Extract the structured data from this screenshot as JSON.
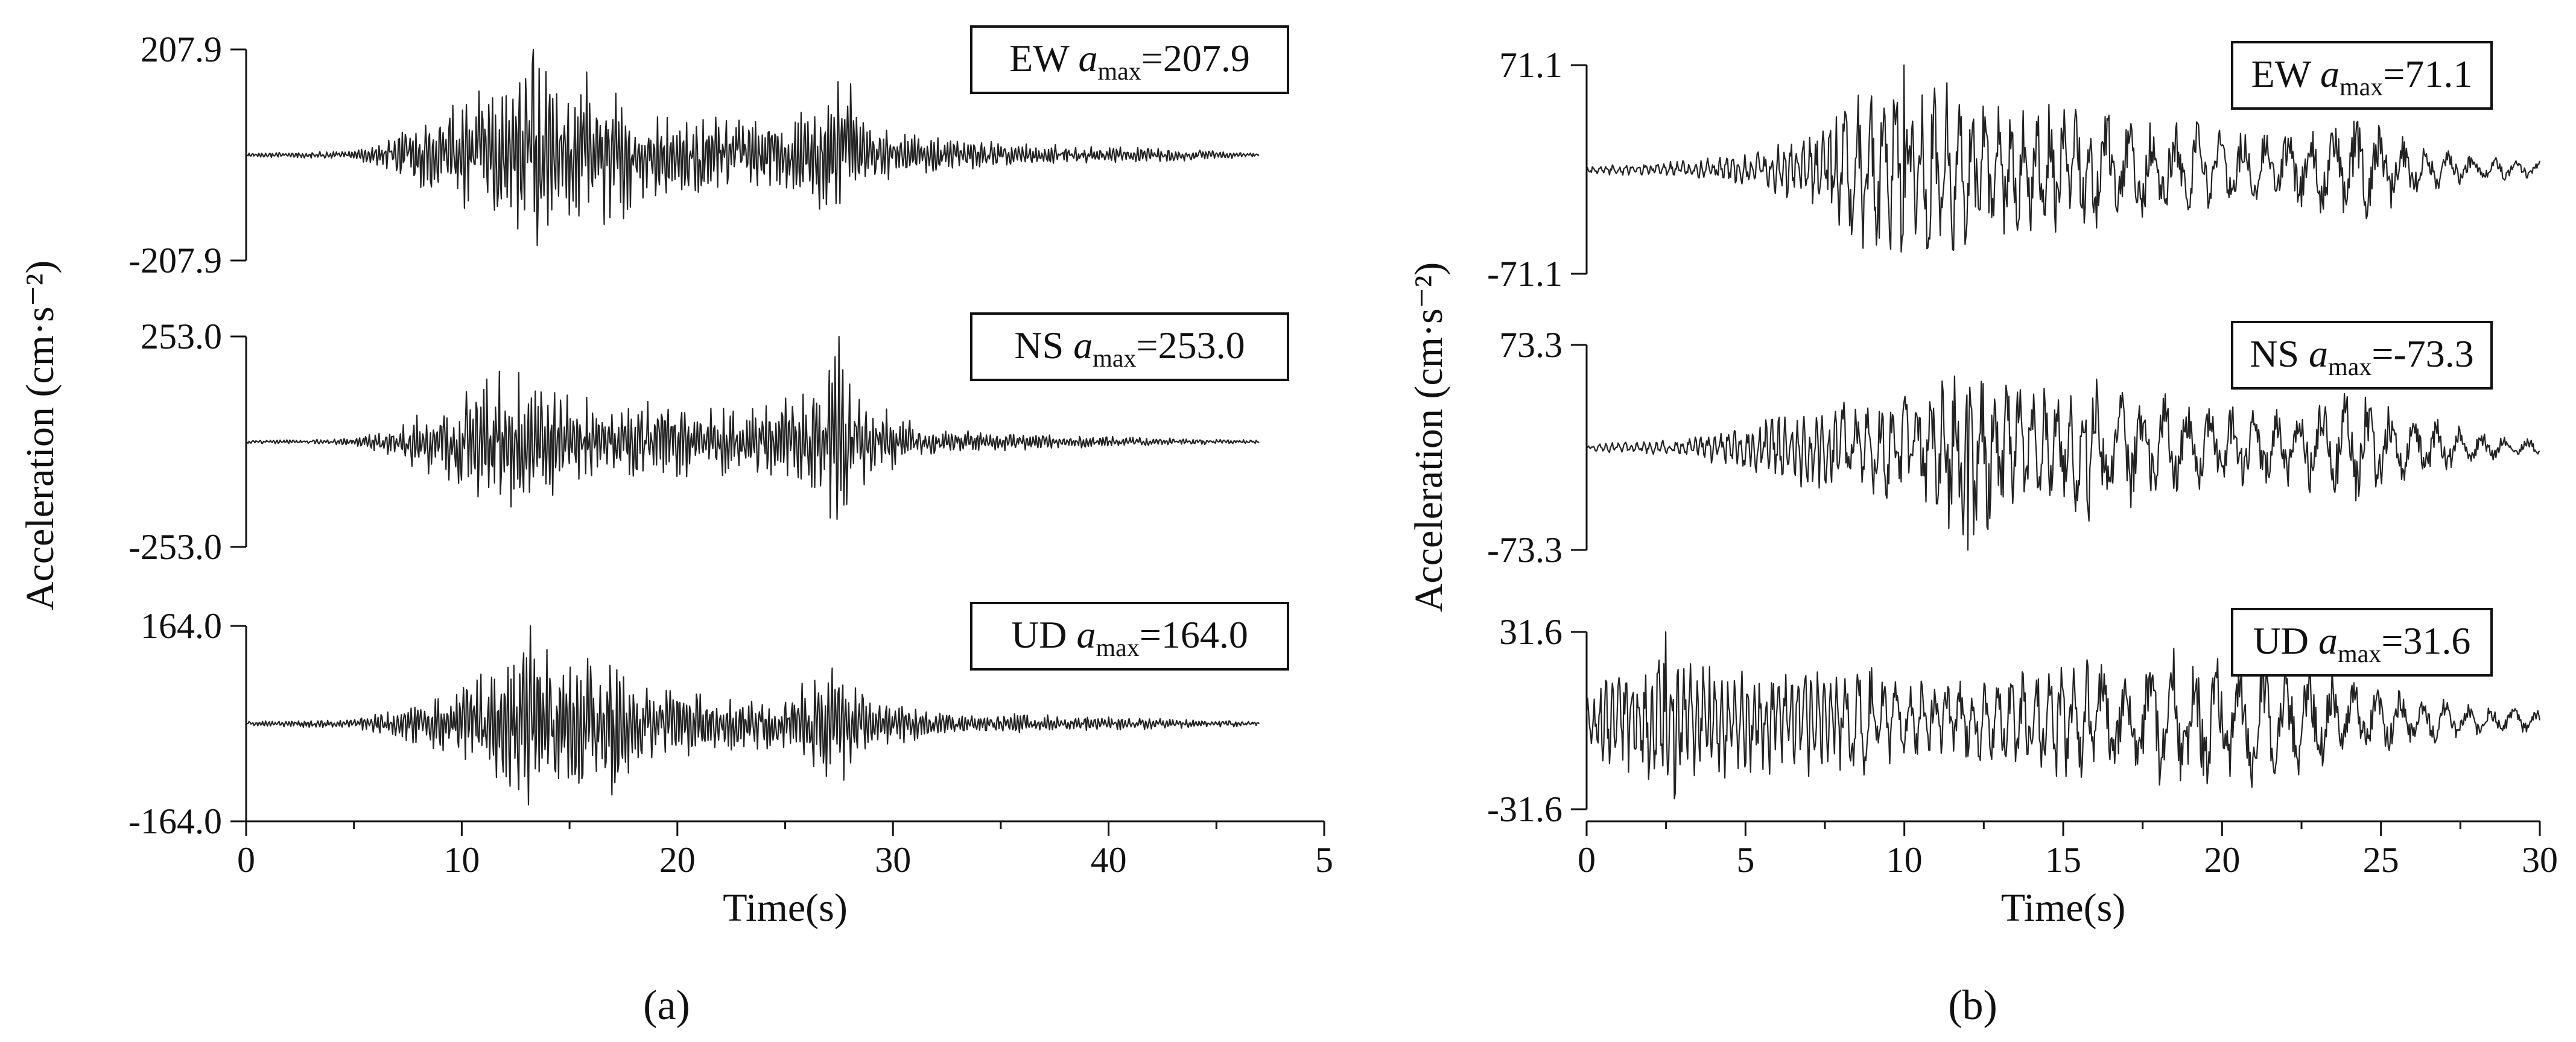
{
  "figure": {
    "panel_a_label": "(a)",
    "panel_b_label": "(b)"
  },
  "chart_data": [
    {
      "type": "line",
      "panel": "a",
      "xlabel": "Time(s)",
      "ylabel": "Acceleration (cm·s⁻²)",
      "xlim": [
        0,
        50
      ],
      "xticks": [
        "0",
        "10",
        "20",
        "30",
        "40",
        "5"
      ],
      "duration": 47,
      "subplots": [
        {
          "component": "EW",
          "amax": "207.9",
          "ylim": [
            -207.9,
            207.9
          ],
          "yticks": [
            "207.9",
            "-207.9"
          ],
          "envelope": [
            [
              0,
              4
            ],
            [
              5,
              8
            ],
            [
              7,
              40
            ],
            [
              9,
              90
            ],
            [
              12,
              160
            ],
            [
              13.3,
              207.9
            ],
            [
              15,
              140
            ],
            [
              16.5,
              190
            ],
            [
              18,
              95
            ],
            [
              20,
              85
            ],
            [
              23,
              70
            ],
            [
              26,
              90
            ],
            [
              27.8,
              165
            ],
            [
              29,
              60
            ],
            [
              33,
              30
            ],
            [
              38,
              20
            ],
            [
              44,
              12
            ],
            [
              47,
              4
            ]
          ]
        },
        {
          "component": "NS",
          "amax": "253.0",
          "ylim": [
            -253.0,
            253.0
          ],
          "yticks": [
            "253.0",
            "-253.0"
          ],
          "envelope": [
            [
              0,
              4
            ],
            [
              5,
              8
            ],
            [
              7,
              55
            ],
            [
              9,
              90
            ],
            [
              12,
              190
            ],
            [
              13.5,
              150
            ],
            [
              15,
              120
            ],
            [
              17,
              110
            ],
            [
              20,
              95
            ],
            [
              23,
              85
            ],
            [
              26,
              120
            ],
            [
              27.5,
              253
            ],
            [
              28.5,
              110
            ],
            [
              32,
              30
            ],
            [
              36,
              20
            ],
            [
              42,
              10
            ],
            [
              47,
              4
            ]
          ]
        },
        {
          "component": "UD",
          "amax": "164.0",
          "ylim": [
            -164.0,
            164.0
          ],
          "yticks": [
            "164.0",
            "-164.0"
          ],
          "envelope": [
            [
              0,
              4
            ],
            [
              5,
              8
            ],
            [
              7,
              25
            ],
            [
              9,
              55
            ],
            [
              12,
              110
            ],
            [
              13.2,
              164
            ],
            [
              15,
              95
            ],
            [
              16.5,
              150
            ],
            [
              18,
              80
            ],
            [
              21,
              55
            ],
            [
              25,
              50
            ],
            [
              27.5,
              120
            ],
            [
              29,
              40
            ],
            [
              33,
              20
            ],
            [
              40,
              12
            ],
            [
              47,
              4
            ]
          ]
        }
      ]
    },
    {
      "type": "line",
      "panel": "b",
      "xlabel": "Time(s)",
      "ylabel": "Acceleration (cm·s⁻²)",
      "xlim": [
        0,
        30
      ],
      "xticks": [
        "0",
        "5",
        "10",
        "15",
        "20",
        "25",
        "30"
      ],
      "duration": 30,
      "subplots": [
        {
          "component": "EW",
          "amax": "71.1",
          "ylim": [
            -71.1,
            71.1
          ],
          "yticks": [
            "71.1",
            "-71.1"
          ],
          "envelope": [
            [
              0,
              3
            ],
            [
              3,
              6
            ],
            [
              5,
              12
            ],
            [
              7,
              25
            ],
            [
              8.5,
              55
            ],
            [
              10,
              71.1
            ],
            [
              12,
              55
            ],
            [
              13.5,
              50
            ],
            [
              16,
              45
            ],
            [
              18,
              40
            ],
            [
              20,
              30
            ],
            [
              22,
              28
            ],
            [
              24,
              35
            ],
            [
              24.5,
              45
            ],
            [
              26,
              18
            ],
            [
              28,
              10
            ],
            [
              30,
              6
            ]
          ]
        },
        {
          "component": "NS",
          "amax": "-73.3",
          "ylim": [
            -73.3,
            73.3
          ],
          "yticks": [
            "73.3",
            "-73.3"
          ],
          "envelope": [
            [
              0,
              3
            ],
            [
              3,
              6
            ],
            [
              6,
              25
            ],
            [
              8,
              35
            ],
            [
              10,
              45
            ],
            [
              12,
              73.3
            ],
            [
              14,
              45
            ],
            [
              16,
              55
            ],
            [
              17,
              45
            ],
            [
              20,
              30
            ],
            [
              22,
              28
            ],
            [
              24,
              45
            ],
            [
              26,
              30
            ],
            [
              28,
              12
            ],
            [
              30,
              6
            ]
          ]
        },
        {
          "component": "UD",
          "amax": "31.6",
          "ylim": [
            -31.6,
            31.6
          ],
          "yticks": [
            "31.6",
            "-31.6"
          ],
          "envelope": [
            [
              0,
              12
            ],
            [
              1,
              18
            ],
            [
              2.5,
              31.6
            ],
            [
              5,
              20
            ],
            [
              7,
              22
            ],
            [
              8,
              24
            ],
            [
              10,
              15
            ],
            [
              13,
              16
            ],
            [
              15,
              24
            ],
            [
              17,
              20
            ],
            [
              18.5,
              28
            ],
            [
              20,
              26
            ],
            [
              22,
              25
            ],
            [
              24,
              16
            ],
            [
              26,
              10
            ],
            [
              28,
              6
            ],
            [
              30,
              4
            ]
          ]
        }
      ]
    }
  ]
}
